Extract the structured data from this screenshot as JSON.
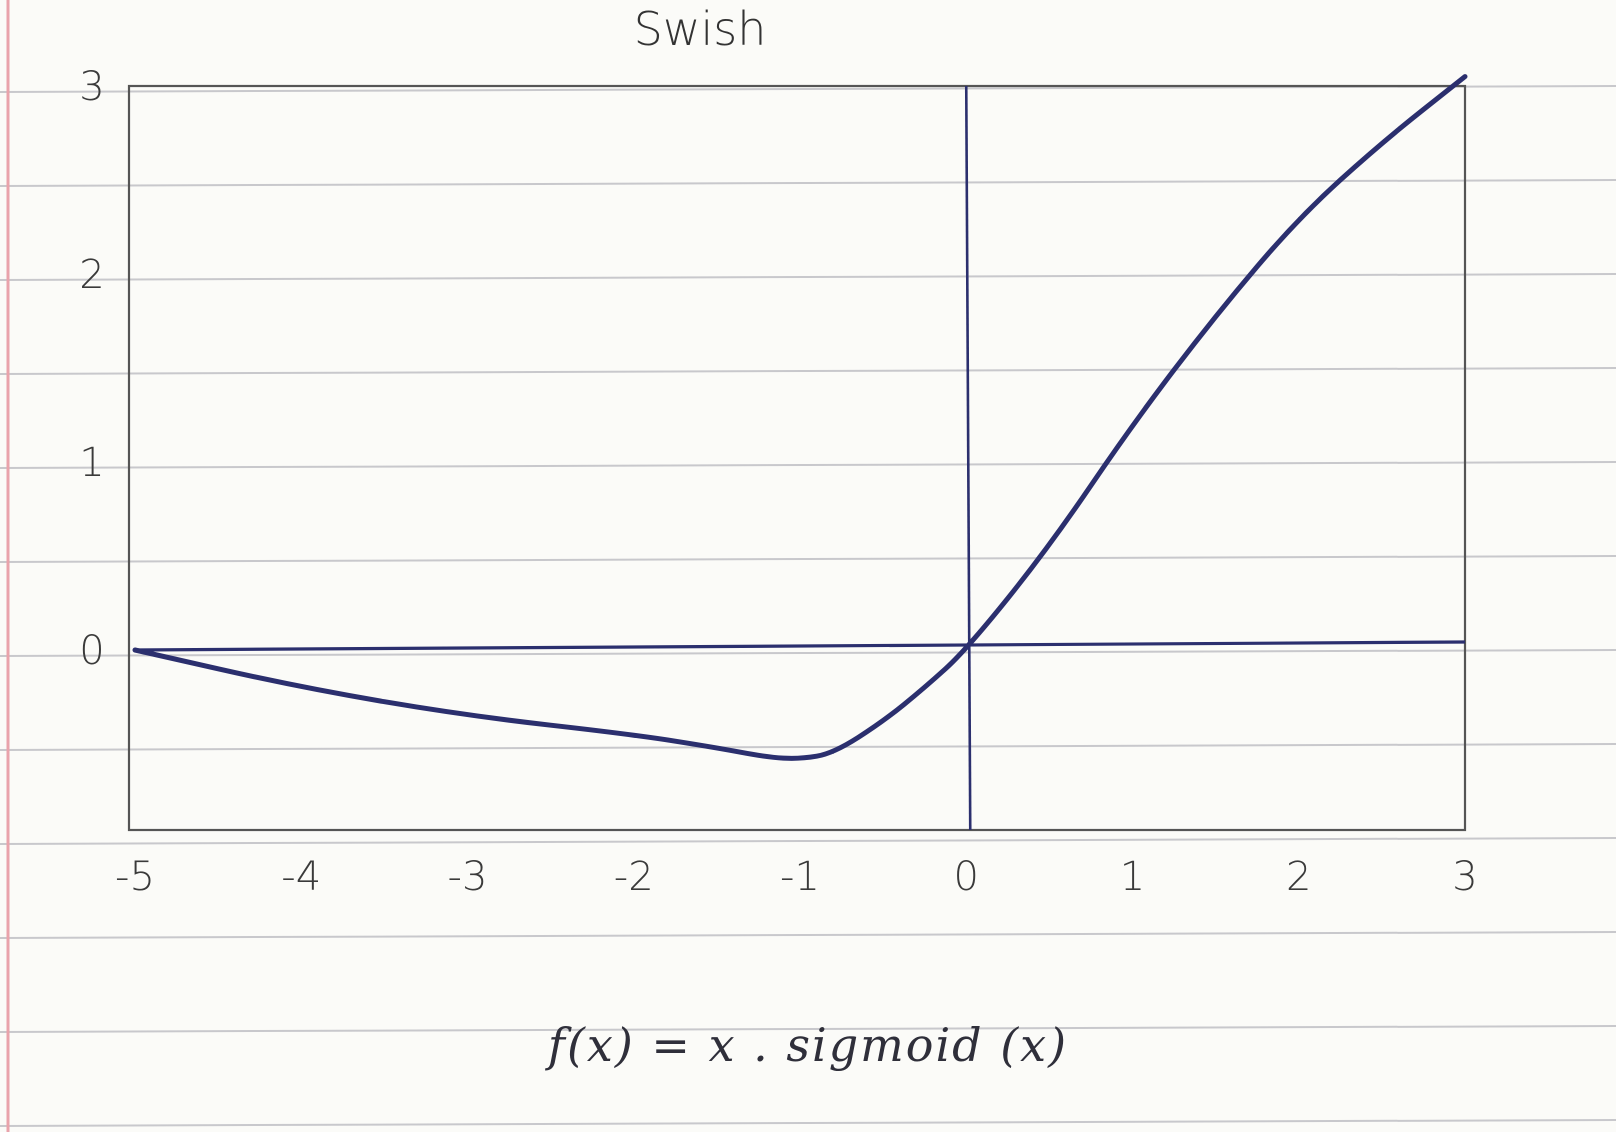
{
  "chart_data": {
    "type": "line",
    "title": "Swish",
    "formula": "f(x) = x . sigmoid (x)",
    "xlabel": "",
    "ylabel": "",
    "xlim": [
      -5,
      3
    ],
    "ylim": [
      -0.6,
      3
    ],
    "x_ticks": [
      {
        "value": -5,
        "label": "-5"
      },
      {
        "value": -4,
        "label": "-4"
      },
      {
        "value": -3,
        "label": "-3"
      },
      {
        "value": -2,
        "label": "-2"
      },
      {
        "value": -1,
        "label": "-1"
      },
      {
        "value": 0,
        "label": "0"
      },
      {
        "value": 1,
        "label": "1"
      },
      {
        "value": 2,
        "label": "2"
      },
      {
        "value": 3,
        "label": "3"
      }
    ],
    "y_ticks": [
      {
        "value": 0,
        "label": "0"
      },
      {
        "value": 1,
        "label": "1"
      },
      {
        "value": 2,
        "label": "2"
      },
      {
        "value": 3,
        "label": "3"
      }
    ],
    "series": [
      {
        "color": "#2b2f6e",
        "points": [
          {
            "x": -5,
            "y": 0.0
          },
          {
            "x": -4,
            "y": -0.2
          },
          {
            "x": -3,
            "y": -0.35
          },
          {
            "x": -2,
            "y": -0.45
          },
          {
            "x": -1.5,
            "y": -0.52
          },
          {
            "x": -1.2,
            "y": -0.57
          },
          {
            "x": -1,
            "y": -0.58
          },
          {
            "x": -0.8,
            "y": -0.55
          },
          {
            "x": -0.5,
            "y": -0.38
          },
          {
            "x": -0.25,
            "y": -0.2
          },
          {
            "x": 0,
            "y": 0.0
          },
          {
            "x": 0.5,
            "y": 0.55
          },
          {
            "x": 1,
            "y": 1.2
          },
          {
            "x": 1.5,
            "y": 1.78
          },
          {
            "x": 2,
            "y": 2.3
          },
          {
            "x": 2.5,
            "y": 2.7
          },
          {
            "x": 3,
            "y": 3.05
          }
        ]
      }
    ]
  },
  "colors": {
    "paper": "#fbfbf8",
    "ruling": "#c8c8cc",
    "margin_line": "#e9a3ab",
    "ink": "#2b2f6e",
    "pencil": "#555"
  }
}
